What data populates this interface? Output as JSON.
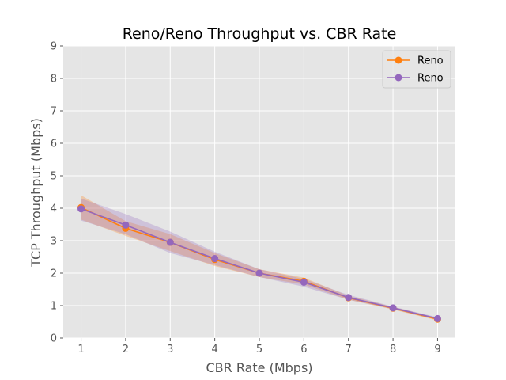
{
  "chart_data": {
    "type": "line",
    "title": "Reno/Reno Throughput vs. CBR Rate",
    "xlabel": "CBR Rate (Mbps)",
    "ylabel": "TCP Throughput (Mbps)",
    "xlim": [
      0.6,
      9.4
    ],
    "ylim": [
      0,
      9
    ],
    "x": [
      1,
      2,
      3,
      4,
      5,
      6,
      7,
      8,
      9
    ],
    "xticks": [
      "1",
      "2",
      "3",
      "4",
      "5",
      "6",
      "7",
      "8",
      "9"
    ],
    "yticks": [
      "0",
      "1",
      "2",
      "3",
      "4",
      "5",
      "6",
      "7",
      "8",
      "9"
    ],
    "grid": true,
    "legend_position": "top-right",
    "series": [
      {
        "name": "Reno",
        "color": "#ff7f0e",
        "values": [
          4.02,
          3.38,
          2.95,
          2.42,
          2.0,
          1.75,
          1.24,
          0.92,
          0.58
        ],
        "lower": [
          3.65,
          3.15,
          2.68,
          2.22,
          1.88,
          1.65,
          1.18,
          0.88,
          0.54
        ],
        "upper": [
          4.4,
          3.6,
          3.2,
          2.62,
          2.12,
          1.86,
          1.3,
          0.96,
          0.62
        ]
      },
      {
        "name": "Reno",
        "color": "#9467bd",
        "values": [
          3.98,
          3.48,
          2.95,
          2.45,
          2.0,
          1.72,
          1.25,
          0.93,
          0.6
        ],
        "lower": [
          3.62,
          3.2,
          2.62,
          2.25,
          1.88,
          1.58,
          1.18,
          0.89,
          0.56
        ],
        "upper": [
          4.3,
          3.82,
          3.28,
          2.66,
          2.12,
          1.82,
          1.33,
          0.97,
          0.64
        ]
      }
    ]
  }
}
